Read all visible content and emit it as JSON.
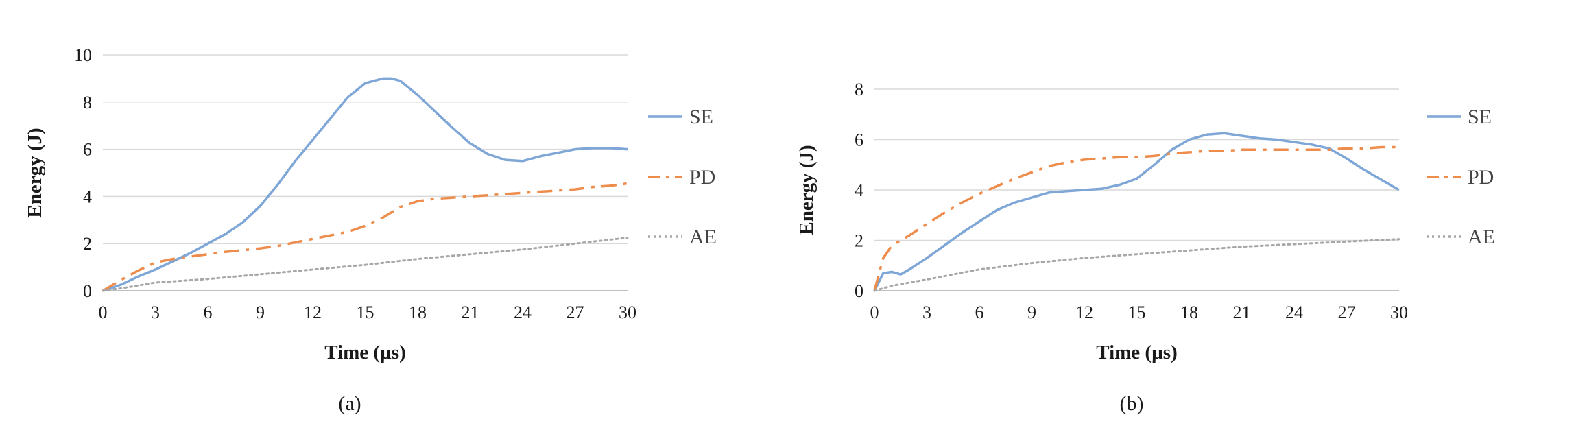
{
  "colors": {
    "SE": "#7ea6d6",
    "PD": "#ee8c4c",
    "AE": "#a7a7a7",
    "grid": "#d9d9d9"
  },
  "chart_data": [
    {
      "type": "line",
      "caption": "(a)",
      "xlabel": "Time (µs)",
      "ylabel": "Energy (J)",
      "xlim": [
        0,
        30
      ],
      "ylim": [
        0,
        10
      ],
      "xticks": [
        0,
        3,
        6,
        9,
        12,
        15,
        18,
        21,
        24,
        27,
        30
      ],
      "yticks": [
        0,
        2,
        4,
        6,
        8,
        10
      ],
      "grid": true,
      "legend_position": "right",
      "series": [
        {
          "name": "SE",
          "style": "solid",
          "x": [
            0,
            1,
            2,
            3,
            4,
            5,
            6,
            7,
            8,
            9,
            10,
            11,
            12,
            13,
            14,
            15,
            16,
            16.5,
            17,
            18,
            19,
            20,
            21,
            22,
            23,
            24,
            25,
            26,
            27,
            28,
            29,
            30
          ],
          "y": [
            0,
            0.25,
            0.6,
            0.9,
            1.25,
            1.6,
            2.0,
            2.4,
            2.9,
            3.6,
            4.5,
            5.5,
            6.4,
            7.3,
            8.2,
            8.8,
            9.0,
            9.0,
            8.9,
            8.3,
            7.6,
            6.9,
            6.25,
            5.8,
            5.55,
            5.5,
            5.7,
            5.85,
            6.0,
            6.05,
            6.05,
            6.0
          ]
        },
        {
          "name": "PD",
          "style": "dashdot",
          "x": [
            0,
            1,
            2,
            3,
            4,
            5,
            6,
            7,
            8,
            9,
            10,
            11,
            12,
            13,
            14,
            15,
            16,
            17,
            18,
            19,
            20,
            21,
            22,
            23,
            24,
            25,
            26,
            27,
            28,
            29,
            30
          ],
          "y": [
            0,
            0.45,
            0.85,
            1.2,
            1.35,
            1.45,
            1.55,
            1.65,
            1.72,
            1.8,
            1.9,
            2.05,
            2.2,
            2.35,
            2.5,
            2.75,
            3.1,
            3.55,
            3.8,
            3.9,
            3.95,
            4.0,
            4.05,
            4.1,
            4.15,
            4.2,
            4.25,
            4.3,
            4.4,
            4.45,
            4.55
          ]
        },
        {
          "name": "AE",
          "style": "dotted",
          "x": [
            0,
            1,
            3,
            6,
            9,
            12,
            15,
            18,
            21,
            24,
            27,
            30
          ],
          "y": [
            0,
            0.1,
            0.35,
            0.5,
            0.7,
            0.9,
            1.1,
            1.35,
            1.55,
            1.75,
            2.0,
            2.25
          ]
        }
      ]
    },
    {
      "type": "line",
      "caption": "(b)",
      "xlabel": "Time (µs)",
      "ylabel": "Energy (J)",
      "xlim": [
        0,
        30
      ],
      "ylim": [
        0,
        8
      ],
      "xticks": [
        0,
        3,
        6,
        9,
        12,
        15,
        18,
        21,
        24,
        27,
        30
      ],
      "yticks": [
        0,
        2,
        4,
        6,
        8
      ],
      "grid": true,
      "legend_position": "right",
      "series": [
        {
          "name": "SE",
          "style": "solid",
          "x": [
            0,
            0.5,
            1,
            1.5,
            2,
            3,
            4,
            5,
            6,
            7,
            8,
            9,
            10,
            11,
            12,
            13,
            14,
            15,
            16,
            17,
            18,
            19,
            20,
            21,
            22,
            23,
            24,
            25,
            26,
            27,
            28,
            29,
            30
          ],
          "y": [
            0,
            0.7,
            0.75,
            0.65,
            0.85,
            1.3,
            1.8,
            2.3,
            2.75,
            3.2,
            3.5,
            3.7,
            3.9,
            3.95,
            4.0,
            4.05,
            4.2,
            4.45,
            5.0,
            5.6,
            6.0,
            6.2,
            6.25,
            6.15,
            6.05,
            6.0,
            5.9,
            5.8,
            5.65,
            5.25,
            4.8,
            4.4,
            4.0
          ]
        },
        {
          "name": "PD",
          "style": "dashdot",
          "x": [
            0,
            0.5,
            1,
            2,
            3,
            4,
            5,
            6,
            7,
            8,
            9,
            10,
            11,
            12,
            13,
            14,
            15,
            16,
            17,
            18,
            19,
            20,
            21,
            22,
            23,
            24,
            25,
            26,
            27,
            28,
            29,
            30
          ],
          "y": [
            0,
            1.3,
            1.8,
            2.2,
            2.65,
            3.1,
            3.5,
            3.85,
            4.15,
            4.45,
            4.7,
            4.95,
            5.1,
            5.2,
            5.25,
            5.3,
            5.3,
            5.35,
            5.45,
            5.5,
            5.55,
            5.55,
            5.6,
            5.6,
            5.6,
            5.6,
            5.6,
            5.6,
            5.65,
            5.65,
            5.7,
            5.7
          ]
        },
        {
          "name": "AE",
          "style": "dotted",
          "x": [
            0,
            1,
            3,
            6,
            9,
            12,
            15,
            18,
            21,
            24,
            27,
            30
          ],
          "y": [
            0,
            0.2,
            0.45,
            0.85,
            1.1,
            1.3,
            1.45,
            1.6,
            1.75,
            1.85,
            1.95,
            2.05
          ]
        }
      ]
    }
  ]
}
